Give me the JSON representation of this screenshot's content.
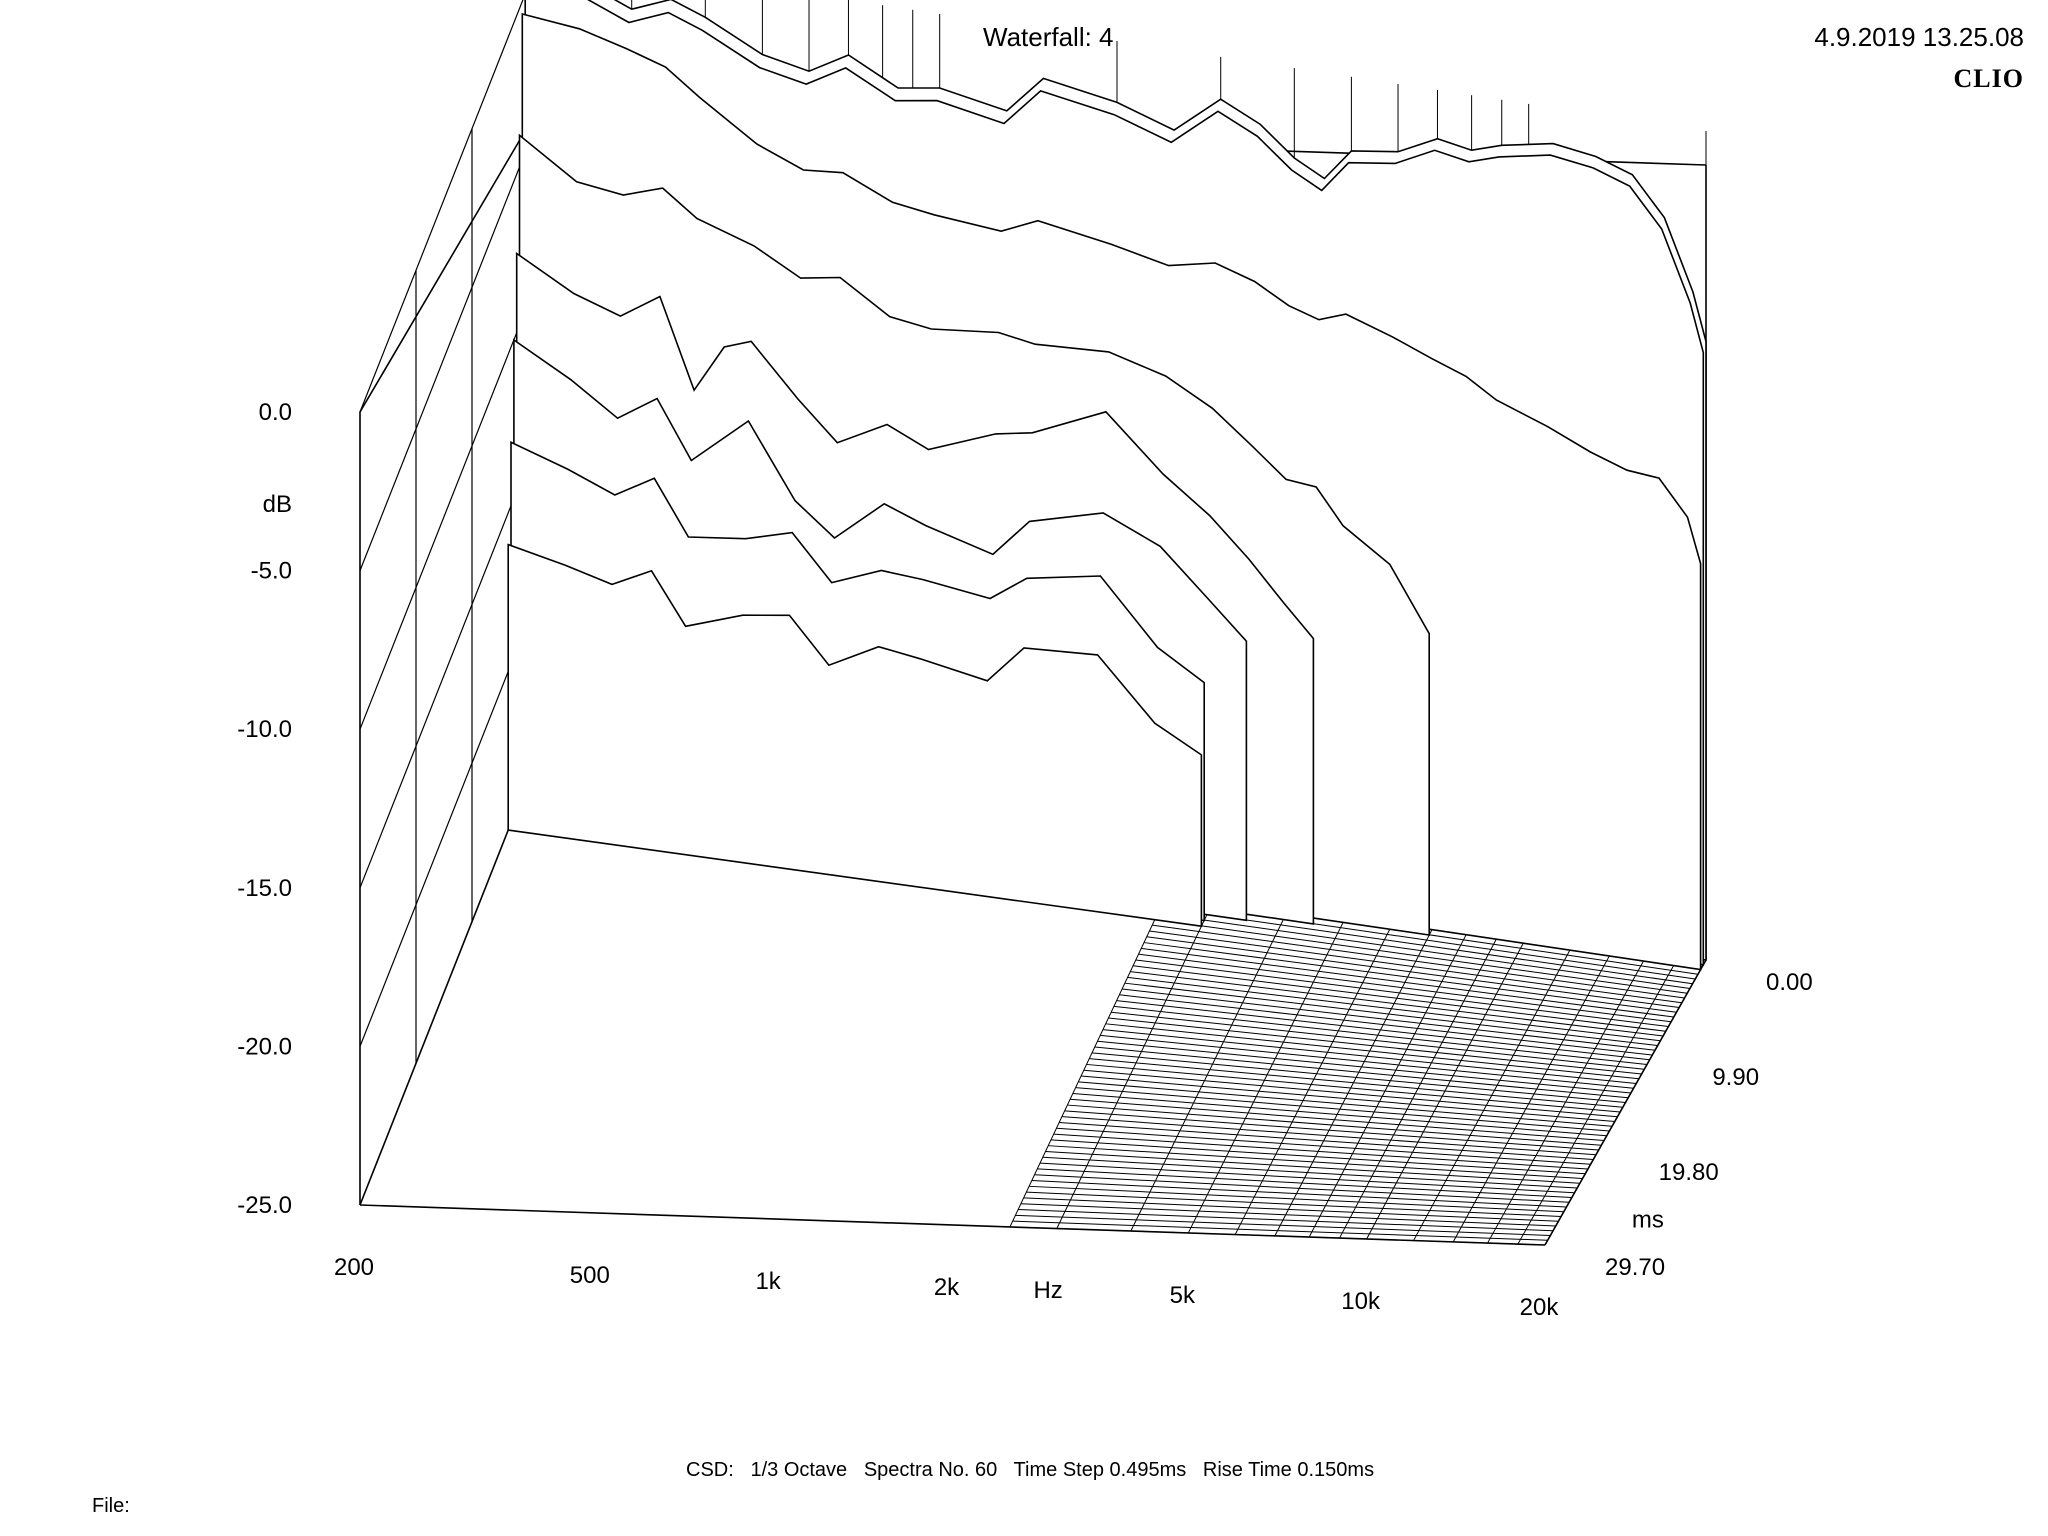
{
  "header": {
    "title": "Waterfall: 4",
    "timestamp": "4.9.2019 13.25.08",
    "brand": "CLIO"
  },
  "footer": {
    "settings": "CSD:   1/3 Octave   Spectra No. 60   Time Step 0.495ms   Rise Time 0.150ms",
    "file_label": "File:"
  },
  "chart_data": {
    "type": "waterfall",
    "title": "Waterfall: 4",
    "x_axis": {
      "label": "Hz",
      "scale": "log",
      "range": [
        200,
        20000
      ],
      "ticks": [
        {
          "value": 200,
          "label": "200"
        },
        {
          "value": 500,
          "label": "500"
        },
        {
          "value": 1000,
          "label": "1k"
        },
        {
          "value": 2000,
          "label": "2k"
        },
        {
          "value": 5000,
          "label": "5k"
        },
        {
          "value": 10000,
          "label": "10k"
        },
        {
          "value": 20000,
          "label": "20k"
        }
      ]
    },
    "y_axis": {
      "label": "dB",
      "range": [
        -25,
        0
      ],
      "ticks": [
        {
          "value": 0,
          "label": "0.0"
        },
        {
          "value": -5,
          "label": "-5.0"
        },
        {
          "value": -10,
          "label": "-10.0"
        },
        {
          "value": -15,
          "label": "-15.0"
        },
        {
          "value": -20,
          "label": "-20.0"
        },
        {
          "value": -25,
          "label": "-25.0"
        }
      ]
    },
    "z_axis": {
      "label": "ms",
      "range": [
        0,
        29.7
      ],
      "ticks": [
        {
          "value": 0,
          "label": "0.00"
        },
        {
          "value": 9.9,
          "label": "9.90"
        },
        {
          "value": 19.8,
          "label": "19.80"
        },
        {
          "value": 29.7,
          "label": "29.70"
        }
      ]
    },
    "spectra_count": 60,
    "time_step_ms": 0.495,
    "rise_time_ms": 0.15,
    "smoothing": "1/3 Octave",
    "spectra": [
      {
        "t": 0.0,
        "points": [
          [
            200,
            0.2
          ],
          [
            250,
            0.4
          ],
          [
            300,
            -0.2
          ],
          [
            350,
            0.3
          ],
          [
            400,
            -0.1
          ],
          [
            500,
            -1.0
          ],
          [
            600,
            -1.3
          ],
          [
            700,
            -0.6
          ],
          [
            850,
            -1.4
          ],
          [
            1000,
            -1.2
          ],
          [
            1300,
            -1.6
          ],
          [
            1500,
            -0.4
          ],
          [
            2000,
            -0.8
          ],
          [
            2500,
            -1.4
          ],
          [
            3000,
            -0.2
          ],
          [
            3500,
            -0.8
          ],
          [
            4000,
            -1.7
          ],
          [
            4500,
            -2.2
          ],
          [
            5000,
            -1.2
          ],
          [
            6000,
            -1.0
          ],
          [
            7000,
            -0.4
          ],
          [
            8000,
            -0.6
          ],
          [
            9000,
            -0.3
          ],
          [
            11000,
            0.0
          ],
          [
            13000,
            -0.2
          ],
          [
            15000,
            -0.6
          ],
          [
            17000,
            -1.8
          ],
          [
            19000,
            -4.0
          ],
          [
            20000,
            -5.5
          ]
        ]
      },
      {
        "t": 0.5,
        "points": [
          [
            200,
            0.0
          ],
          [
            250,
            0.2
          ],
          [
            300,
            -0.4
          ],
          [
            350,
            0.1
          ],
          [
            400,
            -0.3
          ],
          [
            500,
            -1.2
          ],
          [
            600,
            -1.5
          ],
          [
            700,
            -0.8
          ],
          [
            850,
            -1.6
          ],
          [
            1000,
            -1.4
          ],
          [
            1300,
            -1.8
          ],
          [
            1500,
            -0.6
          ],
          [
            2000,
            -1.0
          ],
          [
            2500,
            -1.6
          ],
          [
            3000,
            -0.4
          ],
          [
            3500,
            -1.0
          ],
          [
            4000,
            -1.9
          ],
          [
            4500,
            -2.4
          ],
          [
            5000,
            -1.4
          ],
          [
            6000,
            -1.2
          ],
          [
            7000,
            -0.6
          ],
          [
            8000,
            -0.8
          ],
          [
            9000,
            -0.5
          ],
          [
            11000,
            -0.2
          ],
          [
            13000,
            -0.4
          ],
          [
            15000,
            -0.8
          ],
          [
            17000,
            -2.0
          ],
          [
            19000,
            -4.2
          ],
          [
            20000,
            -5.7
          ]
        ]
      },
      {
        "t": 1.0,
        "points": [
          [
            200,
            -0.4
          ],
          [
            250,
            -0.6
          ],
          [
            300,
            -1.0
          ],
          [
            350,
            -1.4
          ],
          [
            400,
            -2.2
          ],
          [
            500,
            -3.4
          ],
          [
            600,
            -4.0
          ],
          [
            700,
            -3.9
          ],
          [
            850,
            -4.6
          ],
          [
            1000,
            -4.8
          ],
          [
            1300,
            -5.0
          ],
          [
            1500,
            -4.5
          ],
          [
            2000,
            -4.9
          ],
          [
            2500,
            -5.3
          ],
          [
            3000,
            -5.0
          ],
          [
            3500,
            -5.4
          ],
          [
            4000,
            -6.0
          ],
          [
            4500,
            -6.3
          ],
          [
            5000,
            -6.0
          ],
          [
            6000,
            -6.5
          ],
          [
            7000,
            -7.0
          ],
          [
            8000,
            -7.4
          ],
          [
            9000,
            -8.0
          ],
          [
            11000,
            -8.6
          ],
          [
            13000,
            -9.2
          ],
          [
            15000,
            -9.6
          ],
          [
            17000,
            -9.7
          ],
          [
            19000,
            -10.8
          ],
          [
            20000,
            -12.2
          ]
        ]
      },
      {
        "t": 1.5,
        "points": [
          [
            200,
            -4.0
          ],
          [
            250,
            -5.2
          ],
          [
            300,
            -5.4
          ],
          [
            350,
            -5.0
          ],
          [
            400,
            -5.8
          ],
          [
            500,
            -6.4
          ],
          [
            600,
            -7.2
          ],
          [
            700,
            -7.0
          ],
          [
            850,
            -8.0
          ],
          [
            1000,
            -8.2
          ],
          [
            1300,
            -8.0
          ],
          [
            1500,
            -8.2
          ],
          [
            2000,
            -8.1
          ],
          [
            2500,
            -8.6
          ],
          [
            3000,
            -9.4
          ],
          [
            3500,
            -10.4
          ],
          [
            4000,
            -11.3
          ],
          [
            4500,
            -11.4
          ],
          [
            5000,
            -12.5
          ],
          [
            6000,
            -13.5
          ],
          [
            7000,
            -15.5
          ]
        ]
      },
      {
        "t": 2.0,
        "points": [
          [
            200,
            -7.5
          ],
          [
            250,
            -8.5
          ],
          [
            300,
            -9.0
          ],
          [
            350,
            -8.2
          ],
          [
            400,
            -11.0
          ],
          [
            450,
            -9.5
          ],
          [
            500,
            -9.2
          ],
          [
            600,
            -10.8
          ],
          [
            700,
            -12.0
          ],
          [
            850,
            -11.2
          ],
          [
            1000,
            -11.8
          ],
          [
            1300,
            -11.0
          ],
          [
            1500,
            -10.8
          ],
          [
            2000,
            -9.8
          ],
          [
            2500,
            -11.5
          ],
          [
            3000,
            -12.6
          ],
          [
            3500,
            -13.8
          ],
          [
            4000,
            -15.0
          ],
          [
            4500,
            -16.0
          ]
        ]
      },
      {
        "t": 2.5,
        "points": [
          [
            200,
            -10.0
          ],
          [
            250,
            -11.0
          ],
          [
            300,
            -12.0
          ],
          [
            350,
            -11.2
          ],
          [
            400,
            -13.0
          ],
          [
            500,
            -11.5
          ],
          [
            600,
            -13.8
          ],
          [
            700,
            -14.8
          ],
          [
            850,
            -13.5
          ],
          [
            1000,
            -14.0
          ],
          [
            1300,
            -14.6
          ],
          [
            1500,
            -13.4
          ],
          [
            2000,
            -12.8
          ],
          [
            2500,
            -13.6
          ],
          [
            3000,
            -15.0
          ],
          [
            3500,
            -16.2
          ]
        ]
      },
      {
        "t": 3.0,
        "points": [
          [
            200,
            -13.0
          ],
          [
            250,
            -13.6
          ],
          [
            300,
            -14.2
          ],
          [
            350,
            -13.5
          ],
          [
            400,
            -15.2
          ],
          [
            500,
            -15.0
          ],
          [
            600,
            -14.6
          ],
          [
            700,
            -16.0
          ],
          [
            850,
            -15.4
          ],
          [
            1000,
            -15.5
          ],
          [
            1300,
            -15.8
          ],
          [
            1500,
            -15.0
          ],
          [
            2000,
            -14.6
          ],
          [
            2500,
            -16.6
          ],
          [
            3000,
            -17.5
          ]
        ]
      },
      {
        "t": 3.5,
        "points": [
          [
            200,
            -16.0
          ],
          [
            250,
            -16.4
          ],
          [
            300,
            -16.8
          ],
          [
            350,
            -16.2
          ],
          [
            400,
            -17.8
          ],
          [
            500,
            -17.2
          ],
          [
            600,
            -17.0
          ],
          [
            700,
            -18.4
          ],
          [
            850,
            -17.6
          ],
          [
            1000,
            -17.8
          ],
          [
            1300,
            -18.2
          ],
          [
            1500,
            -17.0
          ],
          [
            2000,
            -16.9
          ],
          [
            2500,
            -18.8
          ],
          [
            3000,
            -19.6
          ]
        ]
      }
    ]
  }
}
